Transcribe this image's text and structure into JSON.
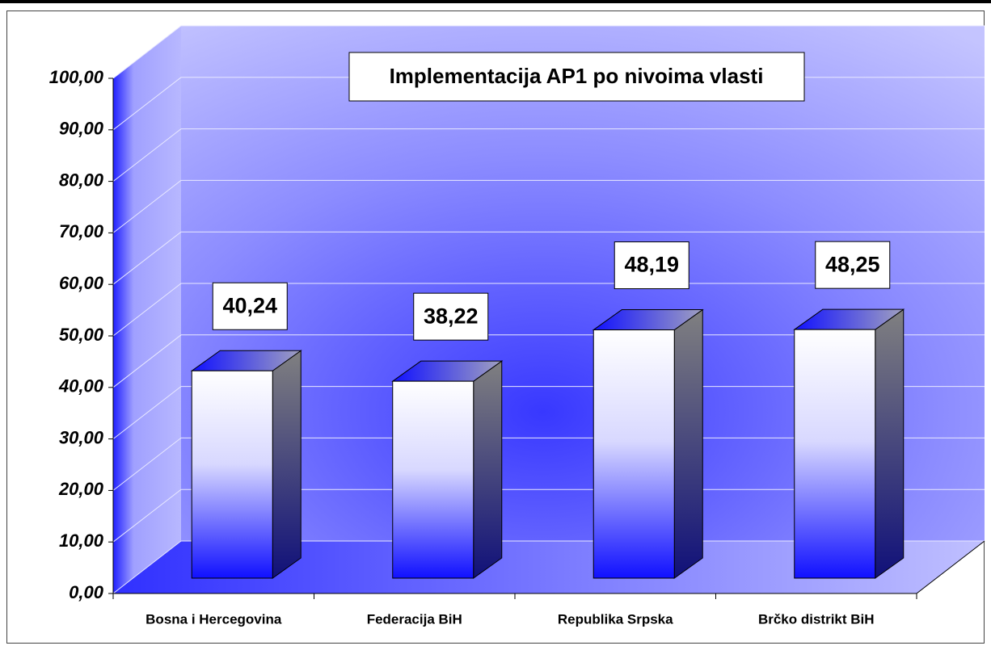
{
  "chart_data": {
    "type": "bar",
    "title": "Implementacija AP1 po nivoima vlasti",
    "categories": [
      "Bosna i Hercegovina",
      "Federacija BiH",
      "Republika Srpska",
      "Brčko distrikt BiH"
    ],
    "values": [
      40.24,
      38.22,
      48.19,
      48.25
    ],
    "value_labels": [
      "40,24",
      "38,22",
      "48,19",
      "48,25"
    ],
    "ylim": [
      0,
      100
    ],
    "yticks": [
      {
        "value": 0,
        "label": "0,00"
      },
      {
        "value": 10,
        "label": "10,00"
      },
      {
        "value": 20,
        "label": "20,00"
      },
      {
        "value": 30,
        "label": "30,00"
      },
      {
        "value": 40,
        "label": "40,00"
      },
      {
        "value": 50,
        "label": "50,00"
      },
      {
        "value": 60,
        "label": "60,00"
      },
      {
        "value": 70,
        "label": "70,00"
      },
      {
        "value": 80,
        "label": "80,00"
      },
      {
        "value": 90,
        "label": "90,00"
      },
      {
        "value": 100,
        "label": "100,00"
      }
    ],
    "grid": true
  }
}
